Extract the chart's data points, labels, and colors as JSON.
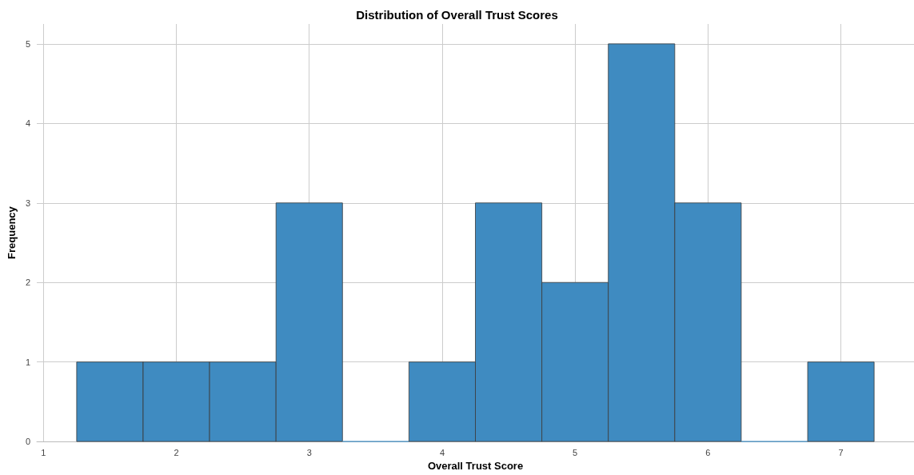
{
  "chart_data": {
    "type": "histogram",
    "title": "Distribution of Overall Trust Scores",
    "xlabel": "Overall Trust Score",
    "ylabel": "Frequency",
    "bins": [
      1.25,
      1.75,
      2.25,
      2.75,
      3.25,
      3.75,
      4.25,
      4.75,
      5.25,
      5.75,
      6.25,
      6.75,
      7.25
    ],
    "values": [
      1,
      1,
      1,
      3,
      0,
      1,
      3,
      2,
      5,
      3,
      0,
      1
    ],
    "color": "#3f8bc1",
    "xlim": [
      0.95,
      7.55
    ],
    "xticks": [
      1,
      2,
      3,
      4,
      5,
      6,
      7
    ],
    "ylim": [
      0,
      5.25
    ],
    "yticks": [
      0,
      1,
      2,
      3,
      4,
      5
    ],
    "grid": true
  }
}
